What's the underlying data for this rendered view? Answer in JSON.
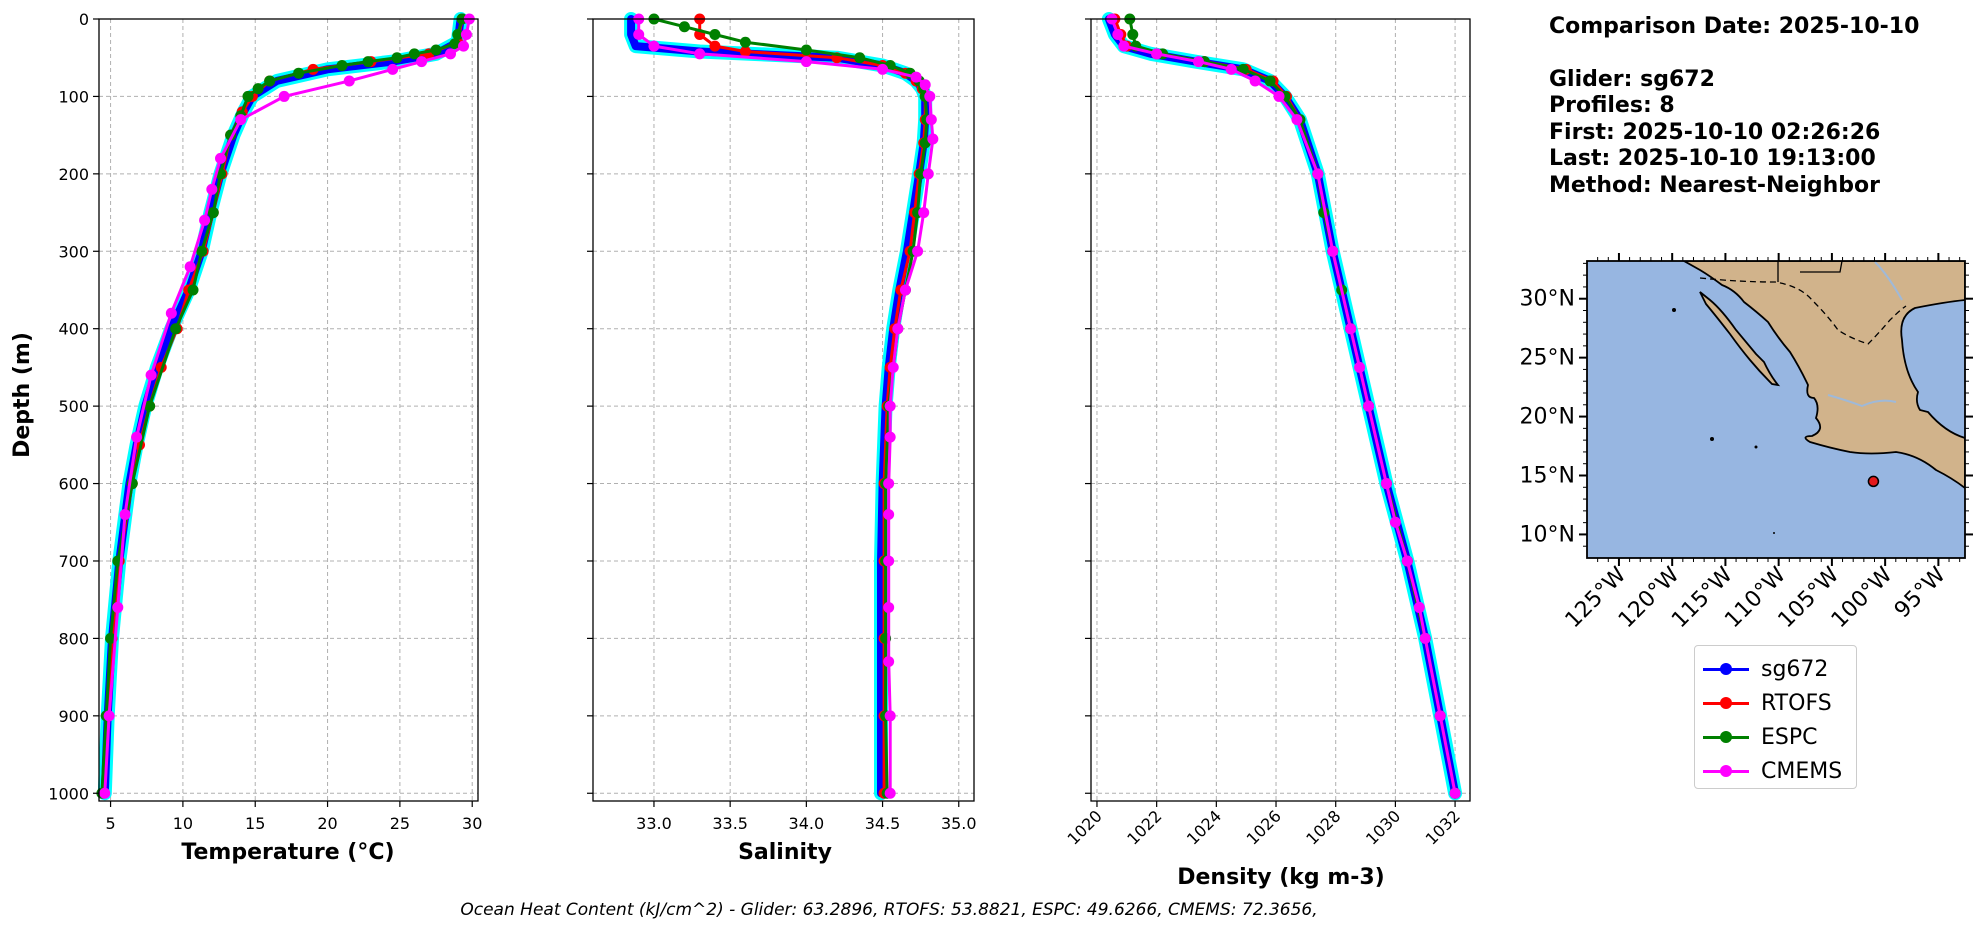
{
  "chart_data": [
    {
      "type": "line",
      "xlabel": "Temperature (°C)",
      "ylabel": "Depth (m)",
      "xlim": [
        4.2,
        30.4
      ],
      "ylim": [
        1010,
        0
      ],
      "x_ticks": [
        5,
        10,
        15,
        20,
        25,
        30
      ],
      "y_ticks": [
        0,
        100,
        200,
        300,
        400,
        500,
        600,
        700,
        800,
        900,
        1000
      ],
      "grid": true,
      "series": [
        {
          "name": "sg672",
          "color": "#0000ff",
          "depth": [
            0,
            30,
            45,
            55,
            65,
            80,
            100,
            120,
            150,
            200,
            250,
            300,
            350,
            400,
            450,
            500,
            550,
            600,
            700,
            800,
            900,
            1000
          ],
          "values": [
            29.2,
            29.0,
            27.5,
            24.5,
            20.0,
            16.5,
            14.8,
            14.2,
            13.5,
            12.6,
            11.9,
            11.3,
            10.4,
            9.2,
            8.2,
            7.4,
            6.8,
            6.3,
            5.6,
            5.1,
            4.8,
            4.6
          ]
        },
        {
          "name": "RTOFS",
          "color": "#ff0000",
          "depth": [
            0,
            30,
            45,
            55,
            65,
            80,
            100,
            120,
            150,
            200,
            250,
            300,
            350,
            400,
            450,
            500,
            550,
            600,
            700,
            800,
            900,
            1000
          ],
          "values": [
            29.3,
            29.0,
            27.0,
            23.0,
            19.0,
            16.0,
            14.8,
            14.1,
            13.3,
            12.7,
            12.1,
            11.4,
            10.4,
            9.6,
            8.5,
            7.7,
            7.0,
            6.5,
            5.6,
            5.1,
            4.8,
            4.5
          ]
        },
        {
          "name": "ESPC",
          "color": "#008000",
          "depth": [
            0,
            20,
            32,
            40,
            45,
            50,
            55,
            60,
            70,
            80,
            90,
            100,
            125,
            150,
            200,
            250,
            300,
            350,
            400,
            500,
            600,
            700,
            800,
            900,
            1000
          ],
          "values": [
            29.3,
            29.0,
            28.8,
            27.5,
            26.0,
            24.8,
            22.8,
            21.0,
            18.0,
            16.0,
            15.2,
            14.5,
            14.0,
            13.3,
            12.6,
            12.1,
            11.3,
            10.7,
            9.5,
            7.7,
            6.5,
            5.5,
            5.0,
            4.7,
            4.4
          ]
        },
        {
          "name": "CMEMS",
          "color": "#ff00ff",
          "depth": [
            0,
            20,
            35,
            45,
            55,
            65,
            80,
            100,
            130,
            180,
            220,
            260,
            320,
            380,
            460,
            540,
            640,
            760,
            900,
            1000
          ],
          "values": [
            29.8,
            29.6,
            29.4,
            28.5,
            26.5,
            24.5,
            21.5,
            17.0,
            14.0,
            12.6,
            12.0,
            11.5,
            10.5,
            9.2,
            7.8,
            6.8,
            6.0,
            5.5,
            4.9,
            4.6
          ]
        }
      ]
    },
    {
      "type": "line",
      "xlabel": "Salinity",
      "ylabel": "",
      "xlim": [
        32.6,
        35.1
      ],
      "ylim": [
        1010,
        0
      ],
      "x_ticks": [
        33.0,
        33.5,
        34.0,
        34.5,
        35.0
      ],
      "grid": true,
      "series": [
        {
          "name": "sg672",
          "color": "#0000ff",
          "depth": [
            0,
            20,
            35,
            42,
            50,
            60,
            70,
            80,
            90,
            100,
            130,
            160,
            200,
            250,
            300,
            350,
            400,
            450,
            500,
            600,
            700,
            800,
            900,
            1000
          ],
          "values": [
            32.85,
            32.85,
            32.88,
            33.3,
            34.2,
            34.5,
            34.65,
            34.72,
            34.76,
            34.78,
            34.78,
            34.77,
            34.74,
            34.7,
            34.66,
            34.61,
            34.57,
            34.54,
            34.52,
            34.5,
            34.49,
            34.49,
            34.49,
            34.49
          ]
        },
        {
          "name": "RTOFS",
          "color": "#ff0000",
          "depth": [
            0,
            20,
            35,
            42,
            50,
            60,
            70,
            80,
            90,
            100,
            130,
            160,
            200,
            250,
            300,
            350,
            400,
            450,
            500,
            600,
            700,
            800,
            900,
            1000
          ],
          "values": [
            33.3,
            33.3,
            33.4,
            33.6,
            34.2,
            34.5,
            34.65,
            34.72,
            34.76,
            34.78,
            34.78,
            34.77,
            34.74,
            34.71,
            34.68,
            34.62,
            34.58,
            34.55,
            34.53,
            34.51,
            34.51,
            34.51,
            34.51,
            34.51
          ]
        },
        {
          "name": "ESPC",
          "color": "#008000",
          "depth": [
            0,
            10,
            20,
            30,
            40,
            50,
            60,
            70,
            80,
            90,
            100,
            130,
            160,
            200,
            250,
            300,
            350,
            400,
            500,
            600,
            700,
            800,
            900,
            1000
          ],
          "values": [
            33.0,
            33.2,
            33.4,
            33.6,
            34.0,
            34.35,
            34.55,
            34.68,
            34.74,
            34.77,
            34.78,
            34.79,
            34.78,
            34.75,
            34.73,
            34.7,
            34.65,
            34.6,
            34.54,
            34.52,
            34.52,
            34.52,
            34.52,
            34.53
          ]
        },
        {
          "name": "CMEMS",
          "color": "#ff00ff",
          "depth": [
            0,
            20,
            35,
            45,
            55,
            65,
            75,
            85,
            100,
            130,
            155,
            200,
            250,
            300,
            350,
            400,
            450,
            500,
            540,
            600,
            640,
            700,
            760,
            830,
            900,
            1000
          ],
          "values": [
            32.9,
            32.9,
            33.0,
            33.3,
            34.0,
            34.5,
            34.72,
            34.78,
            34.81,
            34.82,
            34.83,
            34.8,
            34.77,
            34.73,
            34.65,
            34.6,
            34.57,
            34.55,
            34.55,
            34.54,
            34.54,
            34.54,
            34.54,
            34.54,
            34.55,
            34.55
          ]
        }
      ]
    },
    {
      "type": "line",
      "xlabel": "Density (kg m-3)",
      "ylabel": "",
      "xlim": [
        1019.8,
        1032.5
      ],
      "ylim": [
        1010,
        0
      ],
      "x_ticks": [
        1020,
        1022,
        1024,
        1026,
        1028,
        1030,
        1032
      ],
      "grid": true,
      "series": [
        {
          "name": "sg672",
          "color": "#0000ff",
          "depth": [
            0,
            20,
            35,
            45,
            55,
            65,
            80,
            100,
            130,
            200,
            300,
            400,
            500,
            600,
            700,
            800,
            900,
            1000
          ],
          "values": [
            1020.4,
            1020.6,
            1020.9,
            1021.8,
            1023.3,
            1024.9,
            1025.8,
            1026.3,
            1026.8,
            1027.4,
            1027.9,
            1028.5,
            1029.1,
            1029.7,
            1030.4,
            1031.0,
            1031.5,
            1032.0
          ]
        },
        {
          "name": "RTOFS",
          "color": "#ff0000",
          "depth": [
            0,
            20,
            35,
            45,
            55,
            65,
            80,
            100,
            130,
            200,
            300,
            400,
            500,
            600,
            700,
            800,
            900,
            1000
          ],
          "values": [
            1020.6,
            1020.8,
            1021.0,
            1022.0,
            1023.6,
            1025.0,
            1025.9,
            1026.35,
            1026.8,
            1027.4,
            1027.9,
            1028.5,
            1029.1,
            1029.7,
            1030.4,
            1031.0,
            1031.5,
            1032.0
          ]
        },
        {
          "name": "ESPC",
          "color": "#008000",
          "depth": [
            0,
            20,
            35,
            45,
            55,
            65,
            80,
            100,
            130,
            200,
            250,
            300,
            350,
            400,
            500,
            600,
            700,
            800,
            900,
            1000
          ],
          "values": [
            1021.1,
            1021.2,
            1021.3,
            1022.2,
            1023.6,
            1024.9,
            1025.8,
            1026.3,
            1026.8,
            1027.4,
            1027.6,
            1027.9,
            1028.2,
            1028.5,
            1029.1,
            1029.7,
            1030.4,
            1031.0,
            1031.5,
            1032.0
          ]
        },
        {
          "name": "CMEMS",
          "color": "#ff00ff",
          "depth": [
            0,
            20,
            35,
            45,
            55,
            65,
            80,
            100,
            130,
            200,
            300,
            400,
            450,
            500,
            600,
            650,
            700,
            760,
            800,
            900,
            1000
          ],
          "values": [
            1020.5,
            1020.7,
            1020.9,
            1022.0,
            1023.4,
            1024.5,
            1025.3,
            1026.1,
            1026.7,
            1027.4,
            1027.9,
            1028.5,
            1028.8,
            1029.1,
            1029.7,
            1030.0,
            1030.4,
            1030.8,
            1031.0,
            1031.5,
            1032.0
          ]
        }
      ]
    }
  ],
  "info": {
    "comparison_date": "Comparison Date: 2025-10-10",
    "glider": "Glider: sg672",
    "profiles": "Profiles: 8",
    "first": "First: 2025-10-10 02:26:26",
    "last": "Last: 2025-10-10 19:13:00",
    "method": "Method: Nearest-Neighbor"
  },
  "map": {
    "lat_labels": [
      "30°N",
      "25°N",
      "20°N",
      "15°N",
      "10°N"
    ],
    "lon_labels": [
      "125°W",
      "120°W",
      "115°W",
      "110°W",
      "105°W",
      "100°W",
      "95°W"
    ],
    "ocean_color": "#97b6e1",
    "land_color": "#d1b38b",
    "glider_position": {
      "lat": 14.5,
      "lon": -101.1
    },
    "marker_color": "#e31a1c"
  },
  "legend": [
    {
      "label": "sg672",
      "color": "#0000ff"
    },
    {
      "label": "RTOFS",
      "color": "#ff0000"
    },
    {
      "label": "ESPC",
      "color": "#008000"
    },
    {
      "label": "CMEMS",
      "color": "#ff00ff"
    }
  ],
  "footer": "Ocean Heat Content (kJ/cm^2) - Glider: 63.2896,  RTOFS: 53.8821,  ESPC: 49.6266,  CMEMS: 72.3656,"
}
